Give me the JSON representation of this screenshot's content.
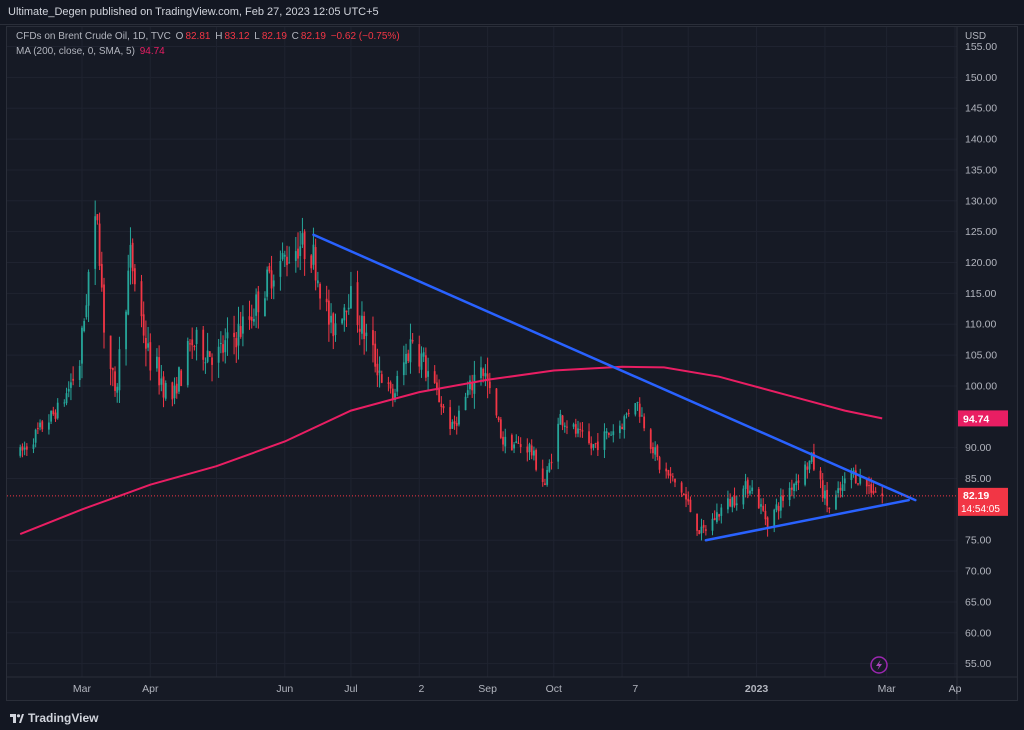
{
  "header": {
    "publisher_line": "Ultimate_Degen published on TradingView.com, Feb 27, 2023 12:05 UTC+5"
  },
  "legend": {
    "symbol": "CFDs on Brent Crude Oil, 1D, TVC",
    "o_label": "O",
    "o_value": "82.81",
    "h_label": "H",
    "h_value": "83.12",
    "l_label": "L",
    "l_value": "82.19",
    "c_label": "C",
    "c_value": "82.19",
    "change": "−0.62 (−0.75%)",
    "ma_label": "MA (200, close, 0, SMA, 5)",
    "ma_value": "94.74"
  },
  "footer": {
    "brand": "TradingView"
  },
  "colors": {
    "up": "#26a69a",
    "down": "#f23645",
    "ma": "#e91e63",
    "trendline": "#2962ff",
    "price_tag": "#f23645",
    "ma_tag": "#e91e63"
  },
  "chart_data": {
    "type": "candlestick",
    "title": "CFDs on Brent Crude Oil, 1D, TVC",
    "currency_label": "USD",
    "y_ticks": [
      155,
      150,
      145,
      140,
      135,
      130,
      125,
      120,
      115,
      110,
      105,
      100,
      90,
      85,
      75,
      70,
      65,
      60,
      55
    ],
    "y_tick_labels": [
      "155.00",
      "150.00",
      "145.00",
      "140.00",
      "135.00",
      "130.00",
      "125.00",
      "120.00",
      "115.00",
      "110.00",
      "105.00",
      "100.00",
      "90.00",
      "85.00",
      "75.00",
      "70.00",
      "65.00",
      "60.00",
      "55.00"
    ],
    "x_tick_labels": [
      "Mar",
      "Apr",
      "Jun",
      "Jul",
      "2",
      "Sep",
      "Oct",
      "7",
      "2023",
      "Mar",
      "Ap"
    ],
    "price_path": [
      [
        "2022-02-01",
        89
      ],
      [
        "2022-02-10",
        93
      ],
      [
        "2022-02-20",
        97
      ],
      [
        "2022-02-28",
        104
      ],
      [
        "2022-03-04",
        118
      ],
      [
        "2022-03-08",
        128
      ],
      [
        "2022-03-11",
        110
      ],
      [
        "2022-03-16",
        98
      ],
      [
        "2022-03-23",
        121
      ],
      [
        "2022-03-31",
        105
      ],
      [
        "2022-04-11",
        98
      ],
      [
        "2022-04-20",
        107
      ],
      [
        "2022-05-02",
        105
      ],
      [
        "2022-05-16",
        111
      ],
      [
        "2022-05-27",
        119
      ],
      [
        "2022-06-08",
        123
      ],
      [
        "2022-06-14",
        121
      ],
      [
        "2022-06-22",
        109
      ],
      [
        "2022-06-30",
        115
      ],
      [
        "2022-07-11",
        105
      ],
      [
        "2022-07-20",
        98
      ],
      [
        "2022-07-29",
        108
      ],
      [
        "2022-08-05",
        102
      ],
      [
        "2022-08-16",
        93
      ],
      [
        "2022-08-29",
        104
      ],
      [
        "2022-09-08",
        91
      ],
      [
        "2022-09-20",
        90
      ],
      [
        "2022-09-27",
        84
      ],
      [
        "2022-10-04",
        95
      ],
      [
        "2022-10-18",
        90
      ],
      [
        "2022-11-01",
        94
      ],
      [
        "2022-11-07",
        98
      ],
      [
        "2022-11-18",
        87
      ],
      [
        "2022-11-28",
        83
      ],
      [
        "2022-12-07",
        76
      ],
      [
        "2022-12-16",
        80
      ],
      [
        "2022-12-29",
        84
      ],
      [
        "2023-01-06",
        78
      ],
      [
        "2023-01-17",
        84
      ],
      [
        "2023-01-26",
        88
      ],
      [
        "2023-02-03",
        80
      ],
      [
        "2023-02-13",
        86
      ],
      [
        "2023-02-20",
        84
      ],
      [
        "2023-02-27",
        82.19
      ]
    ],
    "ma200": [
      [
        "2022-02-01",
        76
      ],
      [
        "2022-03-01",
        80
      ],
      [
        "2022-04-01",
        84
      ],
      [
        "2022-05-01",
        87
      ],
      [
        "2022-06-01",
        91
      ],
      [
        "2022-07-01",
        96
      ],
      [
        "2022-08-01",
        99
      ],
      [
        "2022-09-01",
        101
      ],
      [
        "2022-10-01",
        102.5
      ],
      [
        "2022-11-01",
        103.1
      ],
      [
        "2022-11-20",
        103.0
      ],
      [
        "2022-12-15",
        101.5
      ],
      [
        "2023-01-15",
        98.5
      ],
      [
        "2023-02-10",
        96
      ],
      [
        "2023-02-27",
        94.74
      ]
    ],
    "trendlines": [
      {
        "name": "resistance",
        "start": [
          "2022-06-14",
          124.5
        ],
        "end": [
          "2023-03-14",
          81.5
        ]
      },
      {
        "name": "support",
        "start": [
          "2022-12-09",
          75
        ],
        "end": [
          "2023-03-11",
          81.5
        ]
      }
    ],
    "last_price": "82.19",
    "countdown": "14:54:05",
    "ma_last": "94.74",
    "date_range": [
      "2022-01-26",
      "2023-04-01"
    ],
    "ylim": [
      53,
      158
    ]
  }
}
